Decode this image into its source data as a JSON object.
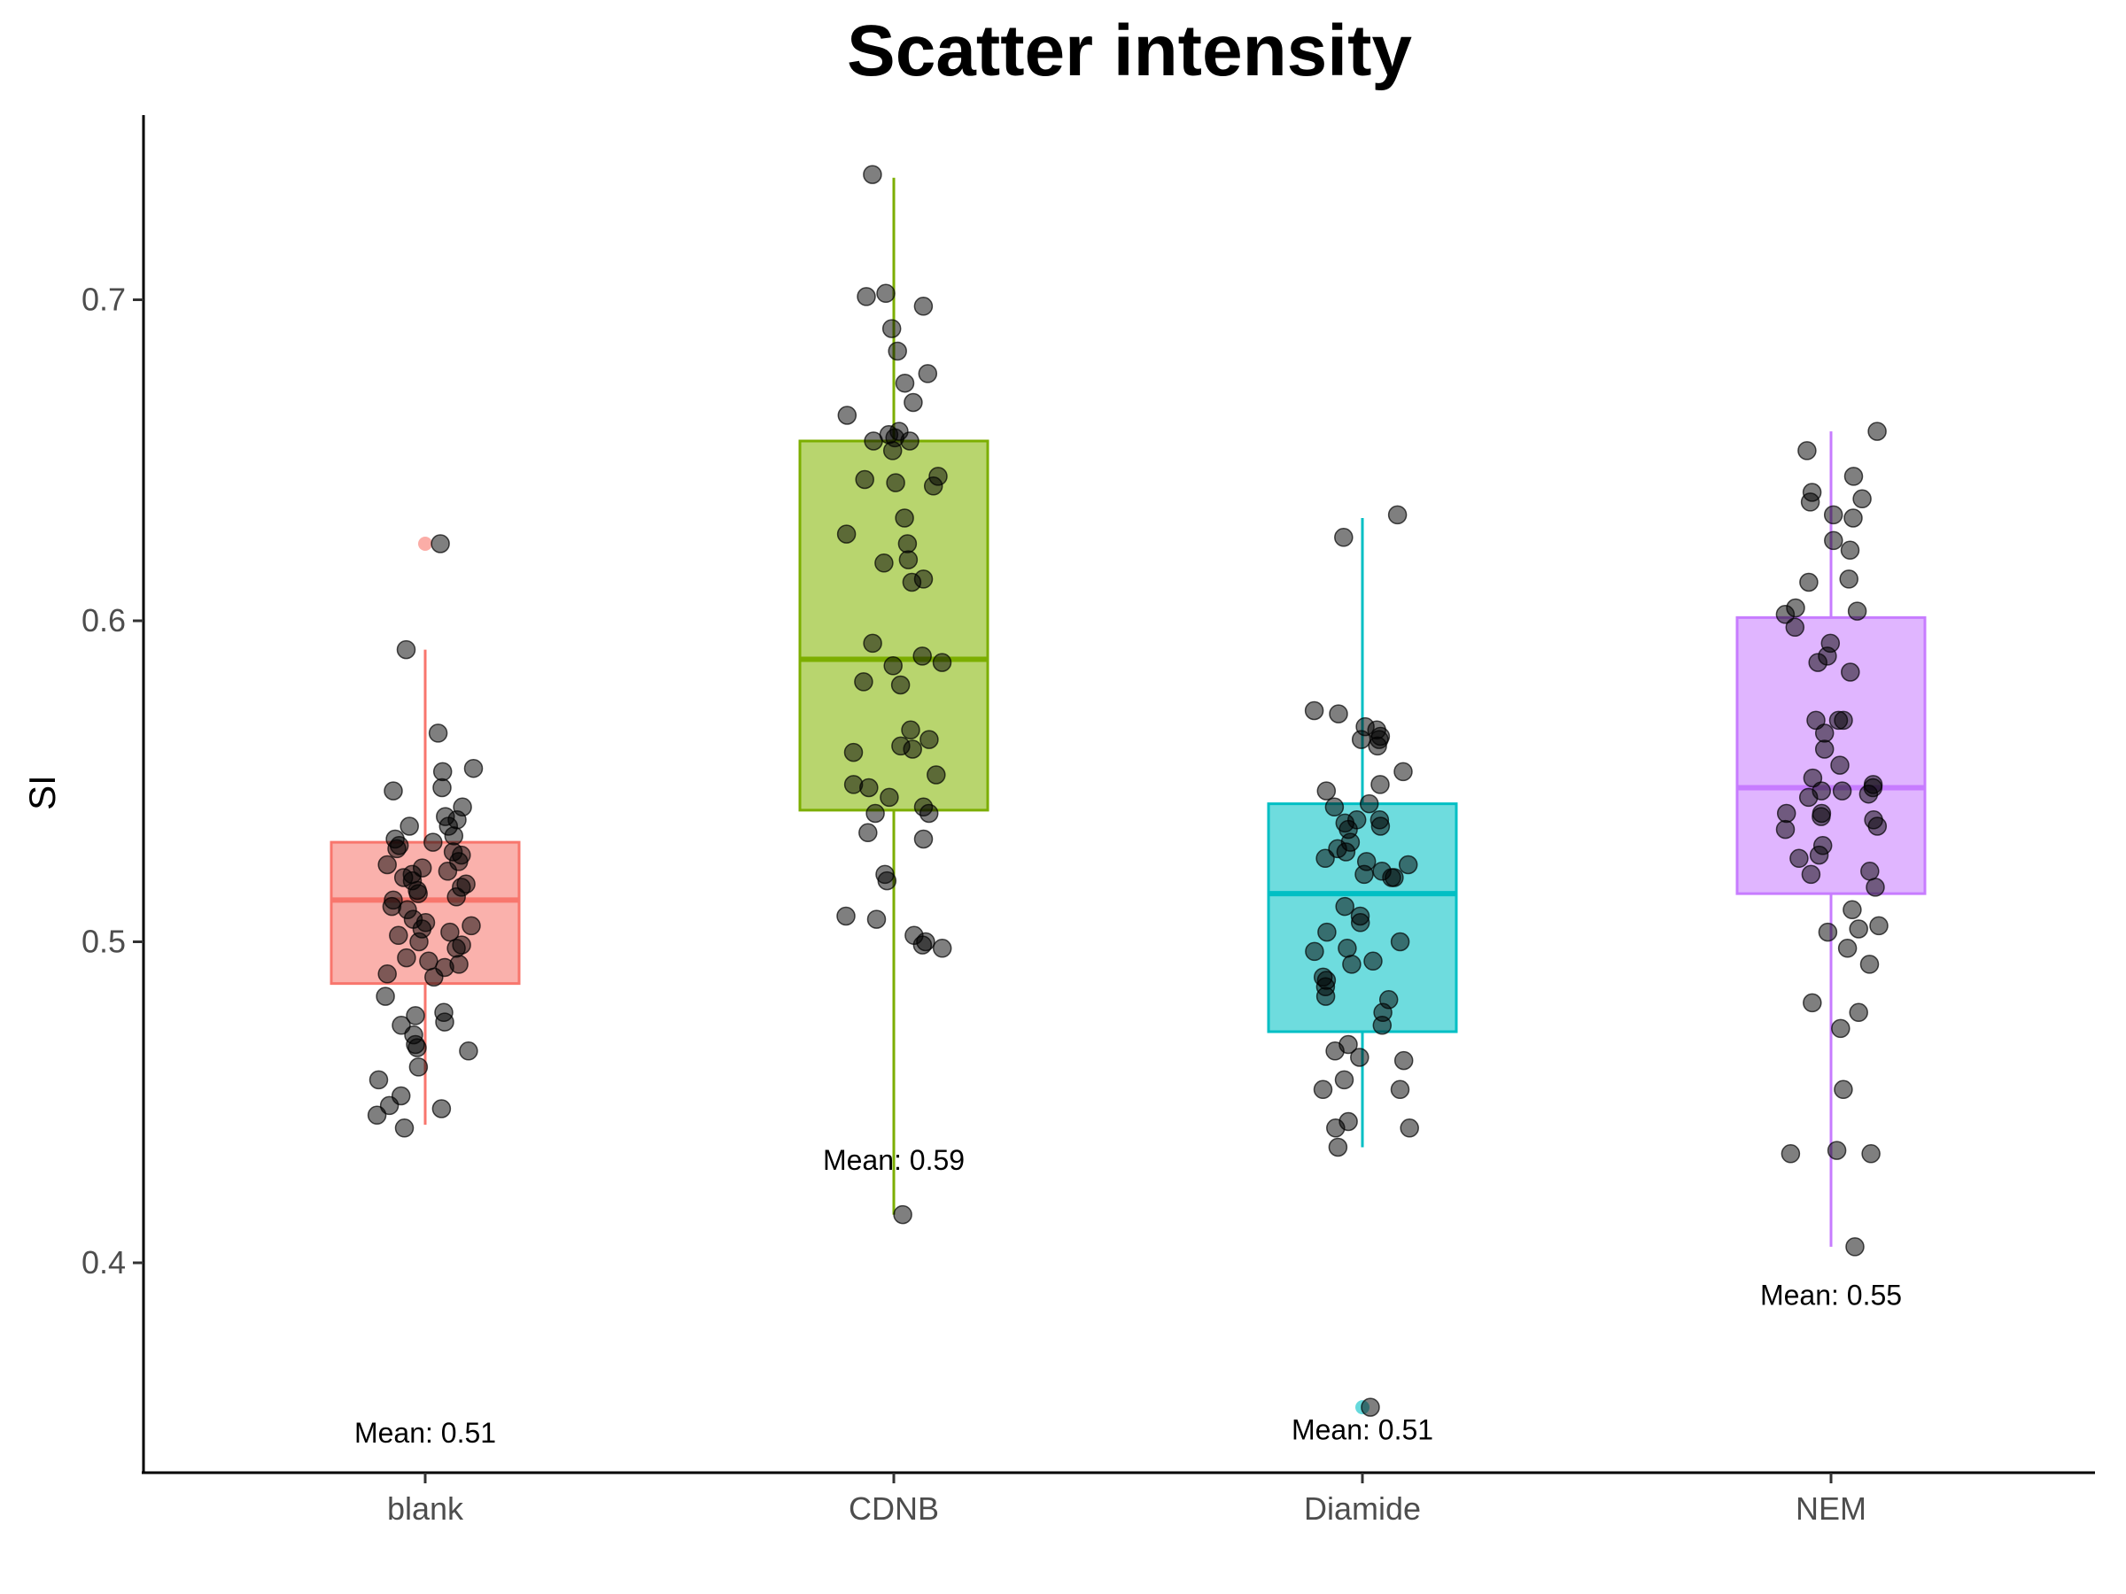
{
  "chart_data": {
    "type": "box",
    "title": "Scatter intensity",
    "xlabel": "",
    "ylabel": "SI",
    "ylim": [
      0.335,
      0.76
    ],
    "yticks": [
      0.4,
      0.5,
      0.6,
      0.7
    ],
    "ytick_labels": [
      "0.4",
      "0.5",
      "0.6",
      "0.7"
    ],
    "grid": false,
    "legend": "none",
    "point_color": "#000000",
    "point_alpha": 0.5,
    "categories": [
      "blank",
      "CDNB",
      "Diamide",
      "NEM"
    ],
    "boxes": [
      {
        "category": "blank",
        "color": "#F8766D",
        "fill": "#FAB1AC",
        "whisker_low": 0.443,
        "q1": 0.487,
        "median": 0.513,
        "q3": 0.531,
        "whisker_high": 0.591,
        "outliers": [
          0.624
        ],
        "mean_label": "Mean: 0.51",
        "mean_label_y": 0.347,
        "points": [
          0.624,
          0.591,
          0.565,
          0.554,
          0.553,
          0.548,
          0.547,
          0.542,
          0.539,
          0.538,
          0.536,
          0.536,
          0.533,
          0.532,
          0.531,
          0.53,
          0.529,
          0.528,
          0.527,
          0.525,
          0.524,
          0.523,
          0.522,
          0.521,
          0.52,
          0.519,
          0.518,
          0.517,
          0.516,
          0.515,
          0.514,
          0.513,
          0.511,
          0.51,
          0.507,
          0.506,
          0.505,
          0.504,
          0.503,
          0.502,
          0.5,
          0.499,
          0.498,
          0.495,
          0.494,
          0.493,
          0.492,
          0.49,
          0.489,
          0.483,
          0.478,
          0.477,
          0.475,
          0.474,
          0.471,
          0.468,
          0.467,
          0.466,
          0.461,
          0.457,
          0.452,
          0.449,
          0.448,
          0.446,
          0.442
        ]
      },
      {
        "category": "CDNB",
        "color": "#7CAE00",
        "fill": "#B8D56E",
        "whisker_low": 0.415,
        "q1": 0.541,
        "median": 0.588,
        "q3": 0.656,
        "whisker_high": 0.738,
        "outliers": [],
        "mean_label": "Mean: 0.59",
        "mean_label_y": 0.432,
        "points": [
          0.739,
          0.702,
          0.701,
          0.698,
          0.691,
          0.684,
          0.677,
          0.674,
          0.668,
          0.664,
          0.659,
          0.658,
          0.657,
          0.656,
          0.656,
          0.653,
          0.645,
          0.644,
          0.643,
          0.642,
          0.632,
          0.627,
          0.624,
          0.619,
          0.618,
          0.613,
          0.612,
          0.593,
          0.589,
          0.587,
          0.586,
          0.581,
          0.58,
          0.566,
          0.563,
          0.561,
          0.56,
          0.559,
          0.552,
          0.549,
          0.548,
          0.545,
          0.542,
          0.54,
          0.54,
          0.534,
          0.532,
          0.521,
          0.519,
          0.508,
          0.507,
          0.502,
          0.5,
          0.499,
          0.498,
          0.415
        ]
      },
      {
        "category": "Diamide",
        "color": "#00BFC4",
        "fill": "#6EDCDE",
        "whisker_low": 0.436,
        "q1": 0.472,
        "median": 0.515,
        "q3": 0.543,
        "whisker_high": 0.632,
        "outliers": [
          0.355
        ],
        "mean_label": "Mean: 0.51",
        "mean_label_y": 0.348,
        "points": [
          0.633,
          0.626,
          0.572,
          0.571,
          0.567,
          0.566,
          0.564,
          0.563,
          0.563,
          0.561,
          0.553,
          0.549,
          0.547,
          0.543,
          0.542,
          0.538,
          0.538,
          0.537,
          0.536,
          0.535,
          0.531,
          0.529,
          0.528,
          0.526,
          0.525,
          0.524,
          0.522,
          0.521,
          0.52,
          0.52,
          0.511,
          0.508,
          0.506,
          0.503,
          0.5,
          0.498,
          0.497,
          0.494,
          0.493,
          0.489,
          0.488,
          0.486,
          0.483,
          0.482,
          0.478,
          0.474,
          0.468,
          0.466,
          0.464,
          0.463,
          0.457,
          0.454,
          0.454,
          0.444,
          0.442,
          0.442,
          0.436,
          0.355
        ]
      },
      {
        "category": "NEM",
        "color": "#C77CFF",
        "fill": "#E0B5FF",
        "whisker_low": 0.405,
        "q1": 0.515,
        "median": 0.548,
        "q3": 0.601,
        "whisker_high": 0.659,
        "outliers": [],
        "mean_label": "Mean: 0.55",
        "mean_label_y": 0.39,
        "points": [
          0.659,
          0.653,
          0.645,
          0.64,
          0.638,
          0.637,
          0.633,
          0.632,
          0.625,
          0.622,
          0.613,
          0.612,
          0.604,
          0.603,
          0.602,
          0.598,
          0.593,
          0.589,
          0.587,
          0.584,
          0.569,
          0.569,
          0.569,
          0.565,
          0.56,
          0.555,
          0.551,
          0.549,
          0.548,
          0.547,
          0.547,
          0.546,
          0.545,
          0.54,
          0.54,
          0.539,
          0.538,
          0.536,
          0.535,
          0.53,
          0.527,
          0.526,
          0.522,
          0.521,
          0.517,
          0.51,
          0.505,
          0.504,
          0.503,
          0.498,
          0.493,
          0.481,
          0.478,
          0.473,
          0.454,
          0.435,
          0.434,
          0.434,
          0.405
        ]
      }
    ]
  }
}
